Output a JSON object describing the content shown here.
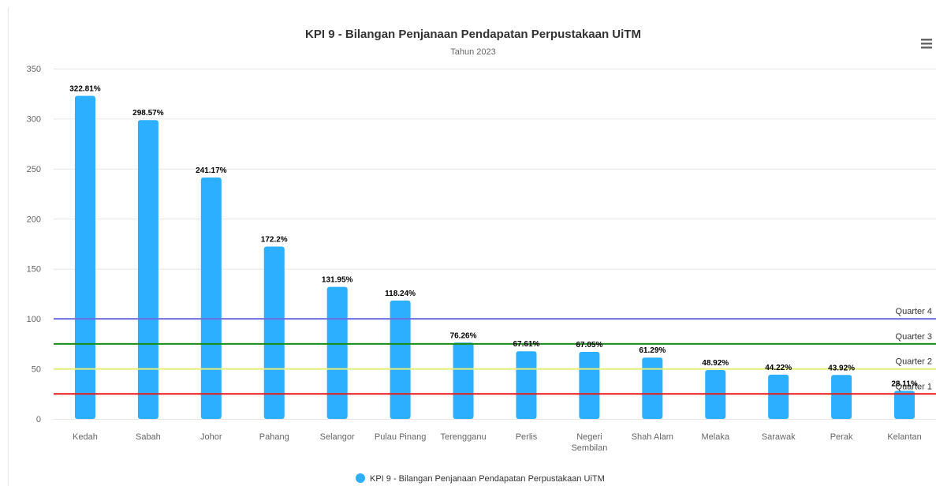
{
  "chart_data": {
    "type": "bar",
    "title": "KPI 9 - Bilangan Penjanaan Pendapatan Perpustakaan UiTM",
    "subtitle": "Tahun 2023",
    "categories": [
      "Kedah",
      "Sabah",
      "Johor",
      "Pahang",
      "Selangor",
      "Pulau Pinang",
      "Terengganu",
      "Perlis",
      "Negeri Sembilan",
      "Shah Alam",
      "Melaka",
      "Sarawak",
      "Perak",
      "Kelantan"
    ],
    "series": [
      {
        "name": "KPI 9 - Bilangan Penjanaan Pendapatan Perpustakaan UiTM",
        "color": "#2caffe",
        "values": [
          322.81,
          298.57,
          241.17,
          172.2,
          131.95,
          118.24,
          76.26,
          67.61,
          67.05,
          61.29,
          48.92,
          44.22,
          43.92,
          28.11
        ],
        "value_labels": [
          "322.81%",
          "298.57%",
          "241.17%",
          "172.2%",
          "131.95%",
          "118.24%",
          "76.26%",
          "67.61%",
          "67.05%",
          "61.29%",
          "48.92%",
          "44.22%",
          "43.92%",
          "28.11%"
        ]
      }
    ],
    "ylim": [
      0,
      350
    ],
    "yticks": [
      0,
      50,
      100,
      150,
      200,
      250,
      300,
      350
    ],
    "grid": true,
    "plot_lines": [
      {
        "label": "Quarter 4",
        "value": 100,
        "color": "#6f6fe0"
      },
      {
        "label": "Quarter 3",
        "value": 75,
        "color": "#1a8a1a"
      },
      {
        "label": "Quarter 2",
        "value": 50,
        "color": "#e6ee7a"
      },
      {
        "label": "Quarter 1",
        "value": 25,
        "color": "#e8191b"
      }
    ],
    "legend": "bottom"
  }
}
